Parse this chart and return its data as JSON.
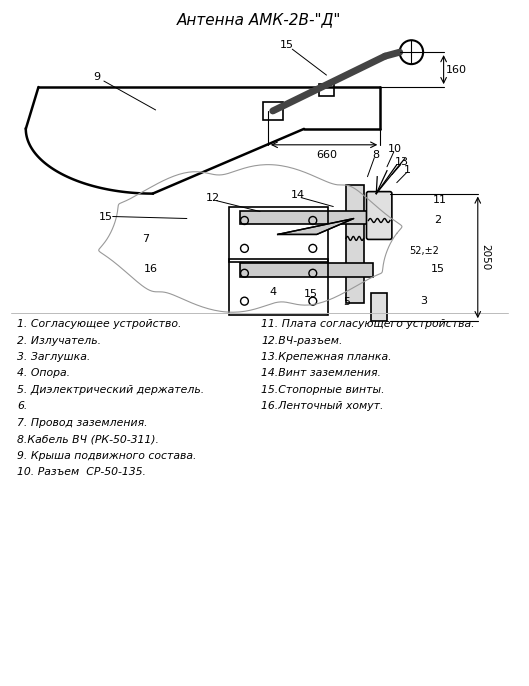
{
  "title": "Антенна АМК-2В-\"Д\"",
  "bg_color": "#ffffff",
  "line_color": "#000000",
  "legend_left": [
    "1. Согласующее устройство.",
    "2. Излучатель.",
    "3. Заглушка.",
    "4. Опора.",
    "5. Диэлектрический держатель.",
    "6.",
    "7. Провод заземления.",
    "8.Кабель ВЧ (РК-50-311).",
    "9. Крыша подвижного состава.",
    "10. Разъем  СР-50-135."
  ],
  "legend_right": [
    "11. Плата согласующего устройства.",
    "12.ВЧ-разъем.",
    "13.Крепежная планка.",
    "14.Винт заземления.",
    "15.Стопорные винты.",
    "16.Ленточный хомут."
  ]
}
